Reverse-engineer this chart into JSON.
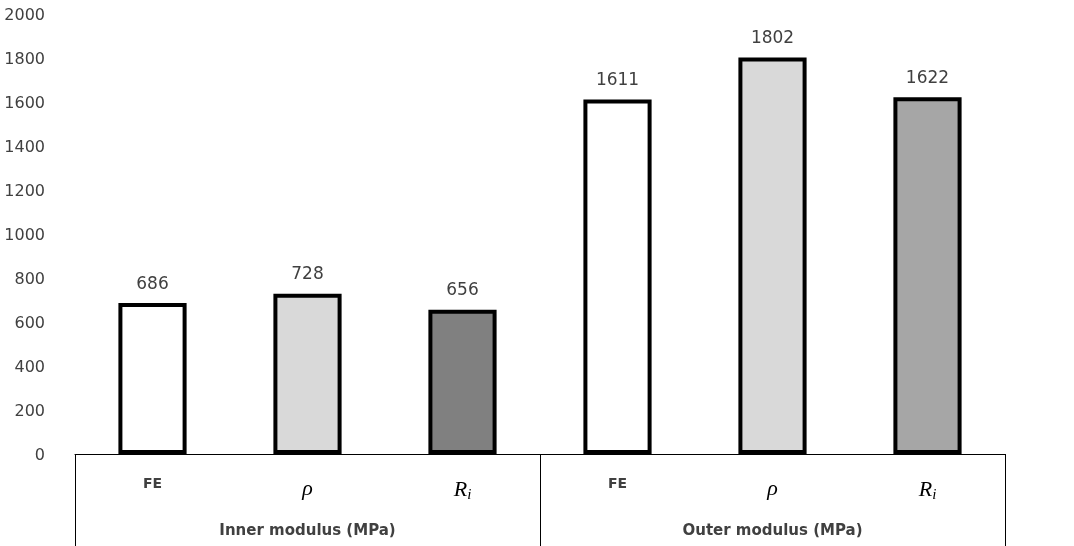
{
  "chart_data": {
    "type": "bar",
    "categories": [
      "Inner modulus (MPa)",
      "Outer modulus (MPa)"
    ],
    "series": [
      {
        "name": "FE",
        "colors": [
          "#ffffff",
          "#ffffff"
        ],
        "values": [
          686,
          1611
        ]
      },
      {
        "name": "ρ",
        "colors": [
          "#d9d9d9",
          "#d9d9d9"
        ],
        "values": [
          728,
          1802
        ]
      },
      {
        "name": "R$_{i}$",
        "colors": [
          "#808080",
          "#a6a6a6"
        ],
        "values": [
          656,
          1622
        ]
      }
    ],
    "ylim": [
      0,
      2000
    ],
    "yticks": [
      0,
      200,
      400,
      600,
      800,
      1000,
      1200,
      1400,
      1600,
      1800,
      2000
    ],
    "data_labels": true,
    "grid": false,
    "legend": false
  }
}
